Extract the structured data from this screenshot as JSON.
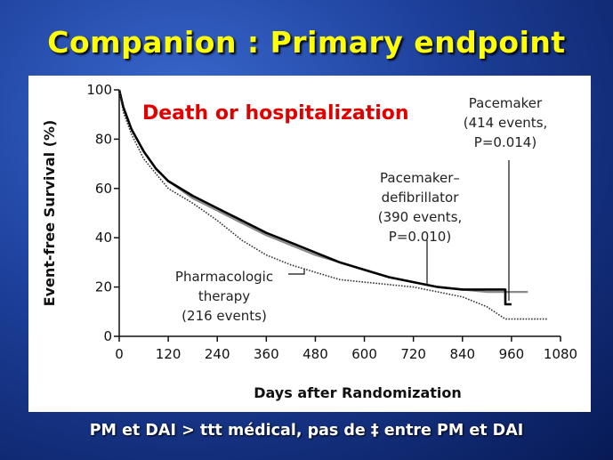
{
  "slide": {
    "title": "Companion : Primary endpoint",
    "footer": "PM et DAI > ttt médical, pas de ‡ entre PM et DAI"
  },
  "colors": {
    "background": "#1d3f9a",
    "title": "#ffff00",
    "highlight": "#e00000",
    "footer": "#ffffff"
  },
  "chart_data": {
    "type": "line",
    "xlabel": "Days after Randomization",
    "ylabel": "Event-free Survival (%)",
    "xlim": [
      0,
      1080
    ],
    "ylim": [
      0,
      100
    ],
    "xticks": [
      0,
      120,
      240,
      360,
      480,
      600,
      720,
      840,
      960,
      1080
    ],
    "yticks": [
      0,
      20,
      40,
      60,
      80,
      100
    ],
    "grid": false,
    "legend": "none",
    "highlight_label": "Death or hospitalization",
    "annotations": [
      {
        "lines": [
          "Pacemaker",
          "(414 events,",
          "P=0.014)"
        ]
      },
      {
        "lines": [
          "Pacemaker–",
          "defibrillator",
          "(390 events,",
          "P=0.010)"
        ]
      },
      {
        "lines": [
          "Pharmacologic",
          "therapy",
          "(216 events)"
        ]
      }
    ],
    "series": [
      {
        "name": "Pacemaker",
        "style": "gray-solid",
        "x": [
          0,
          10,
          30,
          60,
          90,
          120,
          180,
          240,
          300,
          360,
          420,
          480,
          540,
          600,
          660,
          720,
          780,
          840,
          900,
          960,
          1000
        ],
        "y": [
          100,
          93,
          84,
          75,
          68,
          63,
          56,
          51,
          46,
          41,
          37,
          33,
          30,
          27,
          24,
          22,
          20,
          19,
          18,
          18,
          18
        ]
      },
      {
        "name": "Pacemaker–defibrillator",
        "style": "black-solid",
        "x": [
          0,
          10,
          30,
          60,
          90,
          120,
          180,
          240,
          300,
          360,
          420,
          480,
          540,
          600,
          660,
          720,
          780,
          840,
          900,
          945,
          945,
          960
        ],
        "y": [
          100,
          93,
          84,
          75,
          68,
          63,
          57,
          52,
          47,
          42,
          38,
          34,
          30,
          27,
          24,
          22,
          20,
          19,
          19,
          19,
          13,
          13
        ]
      },
      {
        "name": "Pharmacologic therapy",
        "style": "black-dotted",
        "x": [
          0,
          10,
          30,
          60,
          90,
          120,
          150,
          180,
          240,
          300,
          360,
          420,
          480,
          540,
          600,
          660,
          720,
          780,
          840,
          900,
          945,
          1050
        ],
        "y": [
          100,
          91,
          82,
          72,
          66,
          60,
          57,
          54,
          47,
          39,
          33,
          29,
          26,
          23,
          22,
          21,
          20,
          18,
          16,
          12,
          7,
          7
        ]
      }
    ]
  }
}
